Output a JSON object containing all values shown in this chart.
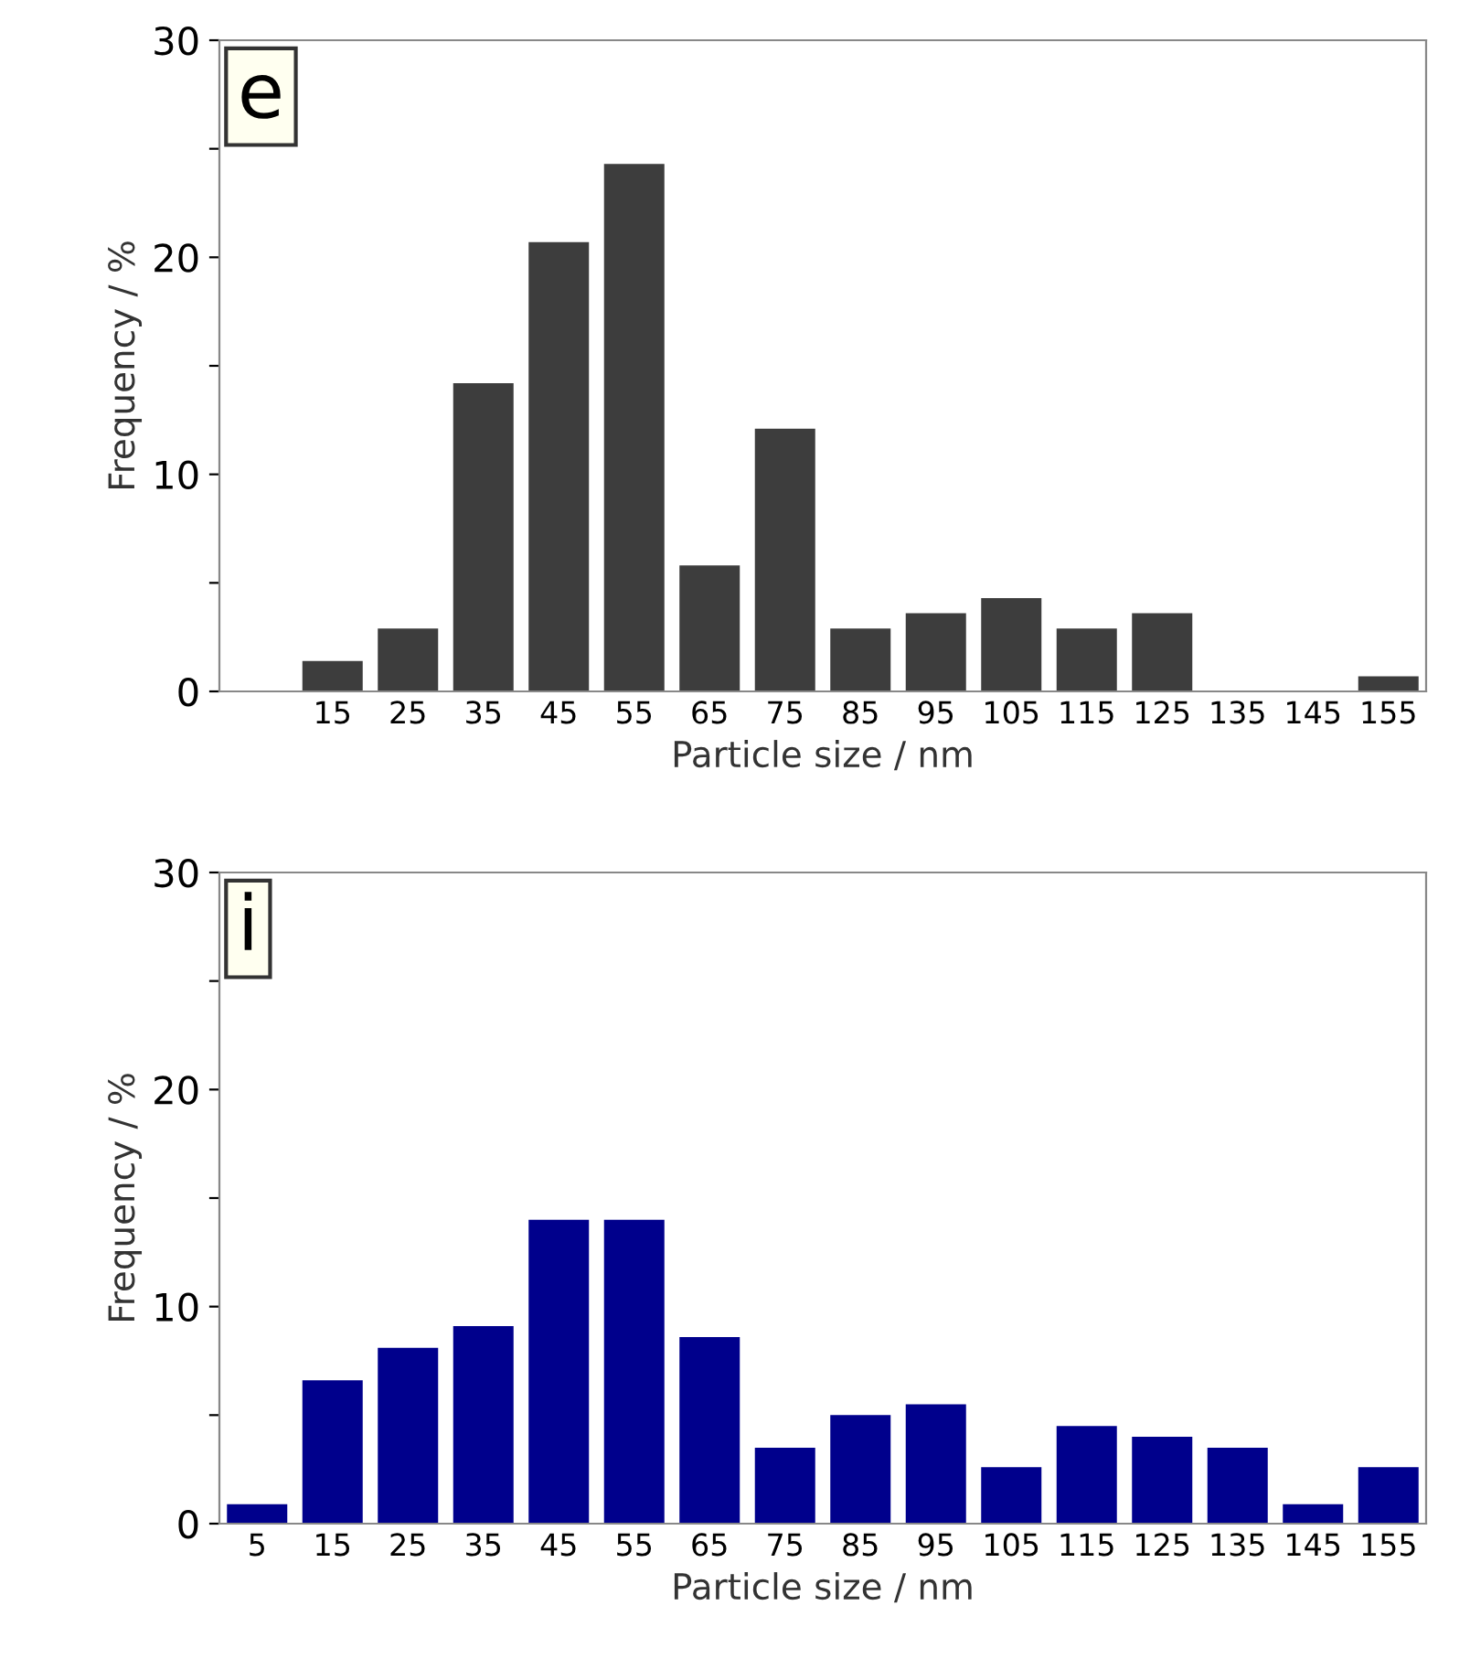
{
  "chart_data": [
    {
      "type": "bar",
      "xlabel": "Particle size / nm",
      "ylabel": "Frequency / %",
      "annotations": [
        "e"
      ],
      "categories": [
        null,
        "15",
        "25",
        "35",
        "45",
        "55",
        "65",
        "75",
        "85",
        "95",
        "105",
        "115",
        "125",
        "135",
        "145",
        "155"
      ],
      "values": [
        null,
        1.4,
        2.9,
        14.2,
        20.7,
        24.3,
        5.8,
        12.1,
        2.9,
        3.6,
        4.3,
        2.9,
        3.6,
        0,
        0,
        0.7
      ],
      "color": "#3d3d3d",
      "ylim": [
        0,
        30
      ],
      "yticks": [
        0,
        {
          "value": 5,
          "label": null
        },
        10,
        {
          "value": 15,
          "label": null
        },
        20,
        {
          "value": 25,
          "label": null
        },
        30
      ],
      "grid": false
    },
    {
      "type": "bar",
      "xlabel": "Particle size / nm",
      "ylabel": "Frequency / %",
      "annotations": [
        "i"
      ],
      "categories": [
        "5",
        "15",
        "25",
        "35",
        "45",
        "55",
        "65",
        "75",
        "85",
        "95",
        "105",
        "115",
        "125",
        "135",
        "145",
        "155"
      ],
      "values": [
        0.9,
        6.6,
        8.1,
        9.1,
        14.0,
        14.0,
        8.6,
        3.5,
        5.0,
        5.5,
        2.6,
        4.5,
        4.0,
        3.5,
        0.9,
        2.6
      ],
      "color": "#00008c",
      "ylim": [
        0,
        30
      ],
      "yticks": [
        0,
        {
          "value": 5,
          "label": null
        },
        10,
        {
          "value": 15,
          "label": null
        },
        20,
        {
          "value": 25,
          "label": null
        },
        30
      ],
      "grid": false
    }
  ]
}
